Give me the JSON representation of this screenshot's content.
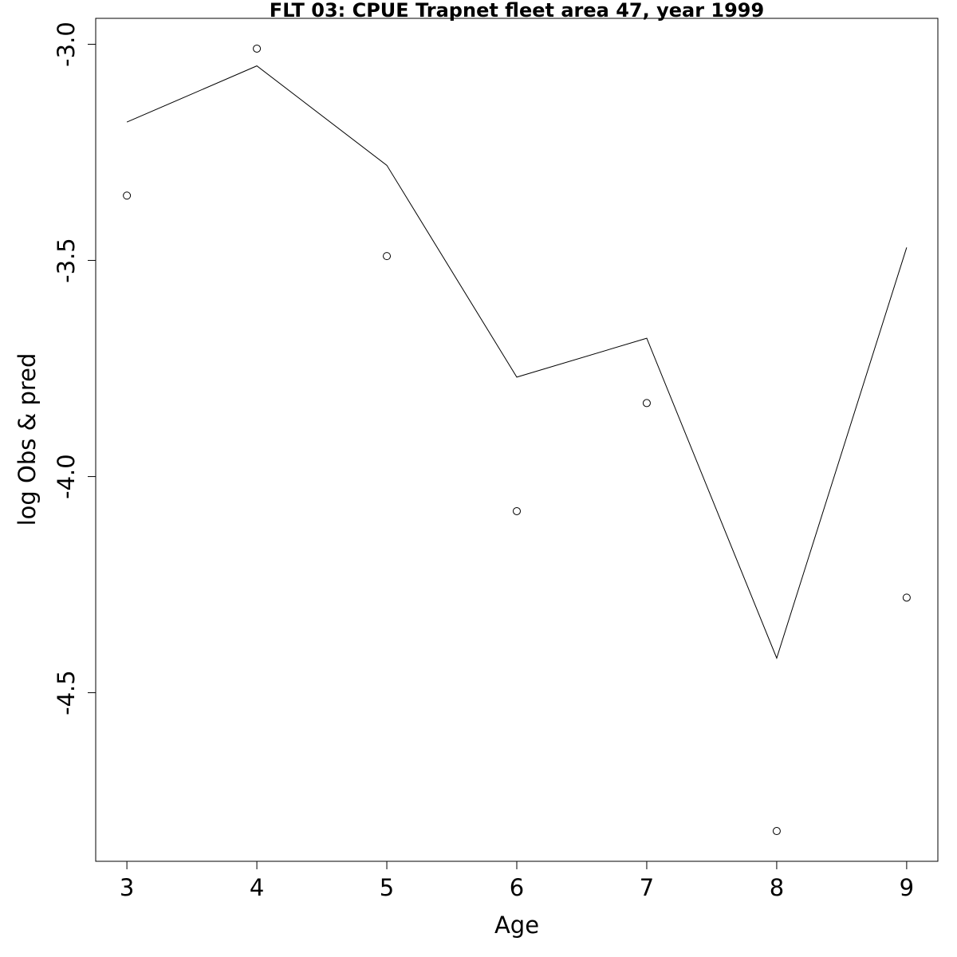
{
  "chart_data": {
    "type": "scatter",
    "title": "FLT 03: CPUE Trapnet fleet area 47, year 1999",
    "xlabel": "Age",
    "ylabel": "log Obs & pred",
    "xlim": [
      2.76,
      9.24
    ],
    "ylim": [
      -4.89,
      -2.94
    ],
    "x_ticks": [
      3,
      4,
      5,
      6,
      7,
      8,
      9
    ],
    "y_ticks": [
      -3.0,
      -3.5,
      -4.0,
      -4.5
    ],
    "x_tick_labels": [
      "3",
      "4",
      "5",
      "6",
      "7",
      "8",
      "9"
    ],
    "y_tick_labels": [
      "-3.0",
      "-3.5",
      "-4.0",
      "-4.5"
    ],
    "grid": false,
    "series": [
      {
        "kind": "points",
        "x": [
          3,
          4,
          5,
          6,
          7,
          8,
          9
        ],
        "y": [
          -3.35,
          -3.01,
          -3.49,
          -4.08,
          -3.83,
          -4.82,
          -4.28
        ]
      },
      {
        "kind": "line",
        "x": [
          3,
          4,
          5,
          6,
          7,
          8,
          9
        ],
        "y": [
          -3.18,
          -3.05,
          -3.28,
          -3.77,
          -3.68,
          -4.42,
          -3.47
        ]
      }
    ]
  }
}
